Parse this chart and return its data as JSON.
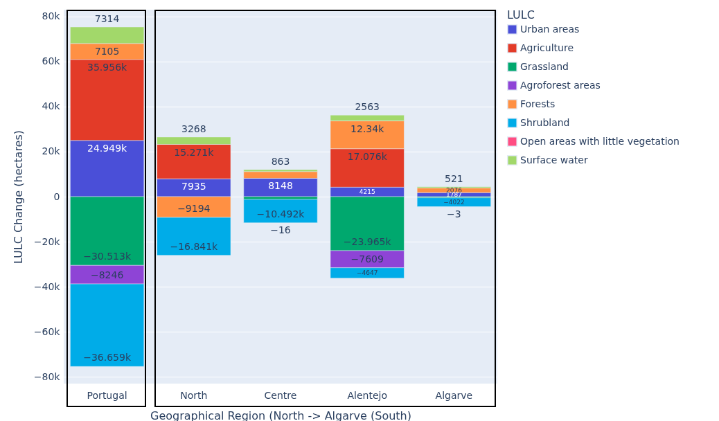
{
  "chart_data": {
    "type": "bar",
    "stacked": true,
    "xlabel": "Geographical Region (North -> Algarve (South)",
    "ylabel": "LULC Change (hectares)",
    "legend_title": "LULC",
    "legend": "top right",
    "grid": "y",
    "categories": [
      "Portugal",
      "North",
      "Centre",
      "Alentejo",
      "Algarve"
    ],
    "ylim": [
      -83000,
      83000
    ],
    "yticks": [
      {
        "value": -80000,
        "label": "−80k"
      },
      {
        "value": -60000,
        "label": "−60k"
      },
      {
        "value": -40000,
        "label": "−40k"
      },
      {
        "value": -20000,
        "label": "−20k"
      },
      0,
      {
        "value": 20000,
        "label": "20k"
      },
      {
        "value": 40000,
        "label": "40k"
      },
      {
        "value": 60000,
        "label": "60k"
      },
      {
        "value": 80000,
        "label": "80k"
      }
    ],
    "series": [
      {
        "name": "Urban areas",
        "color": "#4a4fd8",
        "values": [
          24949,
          7935,
          8148,
          4215,
          1787
        ],
        "value_labels": [
          "24.949k",
          "7935",
          "8148",
          "4215",
          "1787"
        ]
      },
      {
        "name": "Agriculture",
        "color": "#e33b28",
        "values": [
          35956,
          15271,
          null,
          17076,
          null
        ],
        "value_labels": [
          "35.956k",
          "15.271k",
          null,
          "17.076k",
          null
        ]
      },
      {
        "name": "Grassland",
        "color": "#00a86e",
        "values": [
          -30513,
          null,
          -1200,
          -23965,
          -500
        ],
        "value_labels": [
          "−30.513k",
          null,
          null,
          "−23.965k",
          null
        ]
      },
      {
        "name": "Agroforest areas",
        "color": "#8e44d6",
        "values": [
          -8246,
          null,
          null,
          -7609,
          null
        ],
        "value_labels": [
          "−8246",
          null,
          null,
          "−7609",
          null
        ]
      },
      {
        "name": "Forests",
        "color": "#ff9043",
        "values": [
          7105,
          -9194,
          3000,
          12340,
          2076
        ],
        "value_labels": [
          "7105",
          "−9194",
          null,
          "12.34k",
          "2076"
        ]
      },
      {
        "name": "Shrubland",
        "color": "#00ace8",
        "values": [
          -36659,
          -16841,
          -10492,
          -4647,
          -4022
        ],
        "value_labels": [
          "−36.659k",
          "−16.841k",
          "−10.492k",
          "−4647",
          "−4022"
        ]
      },
      {
        "name": "Open areas with little vegetation",
        "color": "#ff4d82",
        "values": [
          null,
          null,
          -16,
          null,
          -3
        ],
        "value_labels": [
          null,
          null,
          "−16",
          null,
          "−3"
        ]
      },
      {
        "name": "Surface water",
        "color": "#a2d86a",
        "values": [
          7314,
          3268,
          863,
          2563,
          521
        ],
        "value_labels": [
          "7314",
          "3268",
          "863",
          "2563",
          "521"
        ]
      }
    ]
  }
}
